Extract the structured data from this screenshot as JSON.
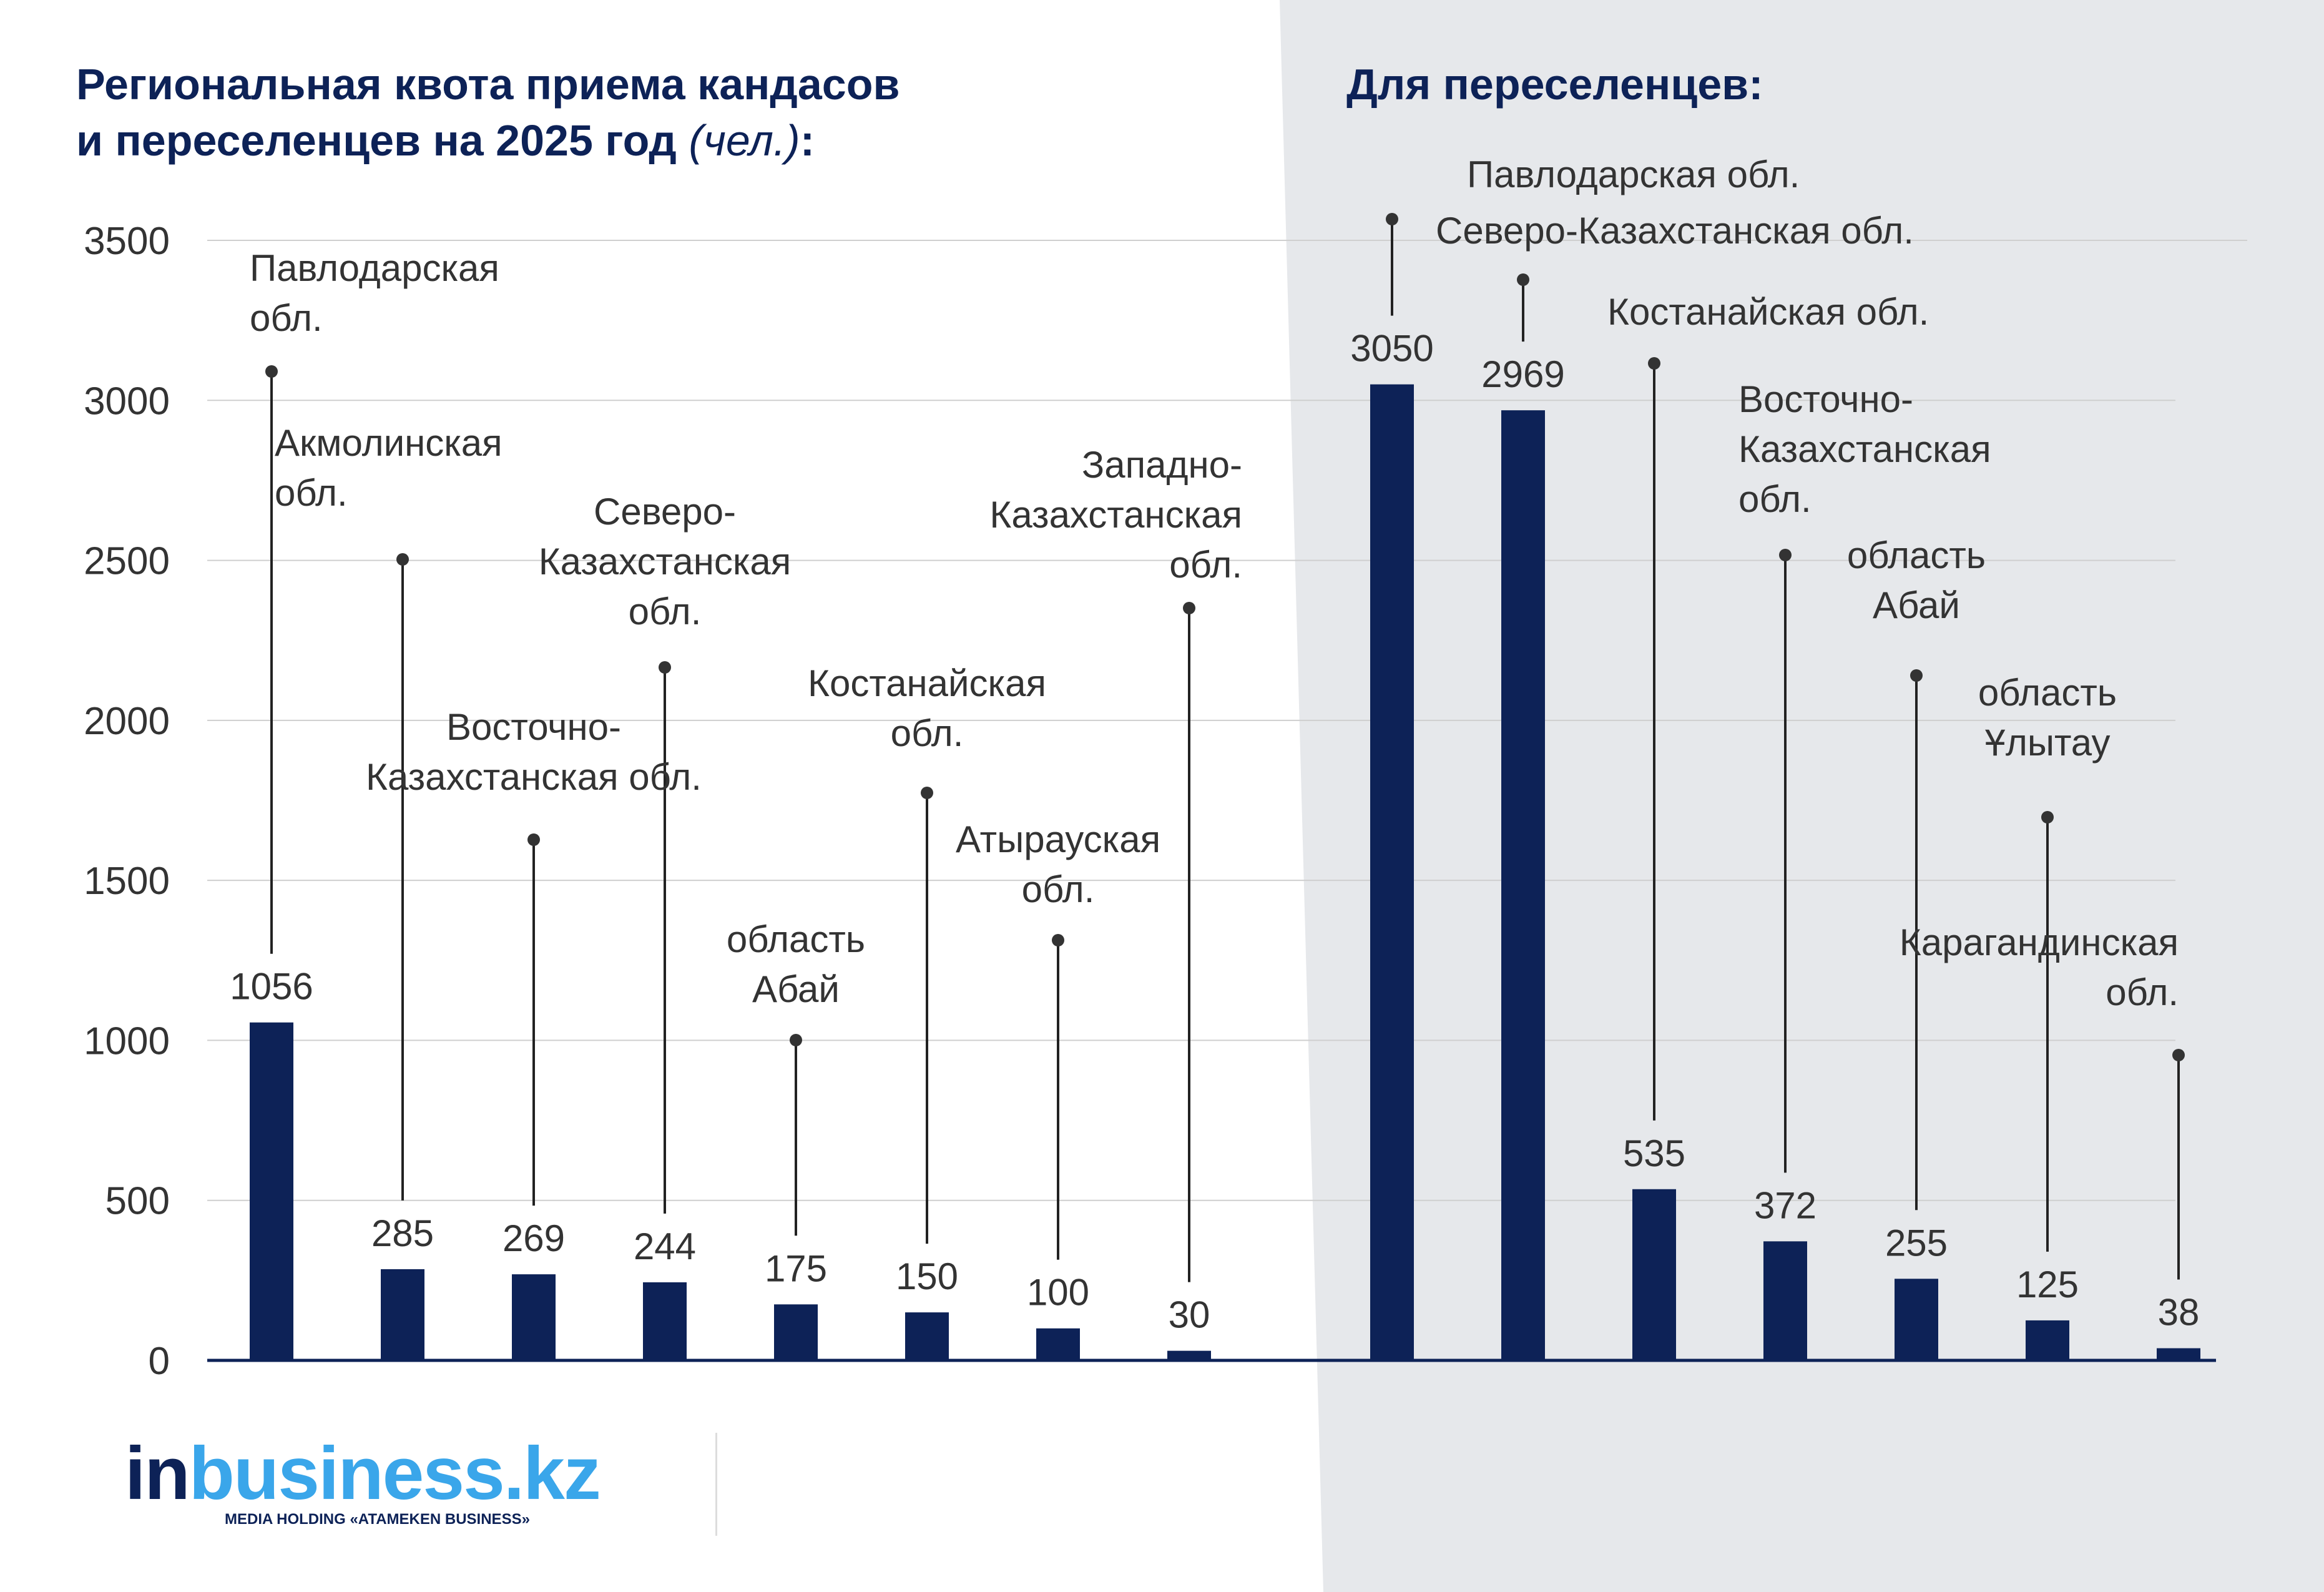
{
  "title": {
    "main": "Региональная квота приема кандасов и переселенцев на 2025 год",
    "main_line1": "Региональная квота приема кандасов",
    "main_line2": "и переселенцев на 2025 год",
    "unit": "(чел.)",
    "colon": ":",
    "right": "Для переселенцев:"
  },
  "logo": {
    "word_in": "in",
    "word_rest": "business.kz",
    "subtitle": "MEDIA HOLDING «ATAMEKEN BUSINESS»"
  },
  "colors": {
    "bar": "#0d2257",
    "title": "#0d2257",
    "label": "#333333",
    "grid": "#cfcfcf",
    "right_panel_bg": "#e6e8eb",
    "logo_accent": "#3aa6ea"
  },
  "chart_data": {
    "type": "bar",
    "ylim": [
      0,
      3500
    ],
    "yticks": [
      0,
      500,
      1000,
      1500,
      2000,
      2500,
      3000,
      3500
    ],
    "grid": true,
    "groups": [
      {
        "name": "",
        "categories": [
          "Павлодарская обл.",
          "Акмолинская обл.",
          "Восточно-Казахстанская обл.",
          "Северо-Казахстанская обл.",
          "область Абай",
          "Костанайская обл.",
          "Атырауская обл.",
          "Западно-Казахстанская обл."
        ],
        "values": [
          1056,
          285,
          269,
          244,
          175,
          150,
          100,
          30
        ]
      },
      {
        "name": "Для переселенцев:",
        "categories": [
          "Павлодарская обл.",
          "Северо-Казахстанская обл.",
          "Костанайская обл.",
          "Восточно-Казахстанская обл.",
          "область Абай",
          "область Ұлытау",
          "Карагандинская обл."
        ],
        "values": [
          3050,
          2969,
          535,
          372,
          255,
          125,
          38
        ]
      }
    ]
  }
}
